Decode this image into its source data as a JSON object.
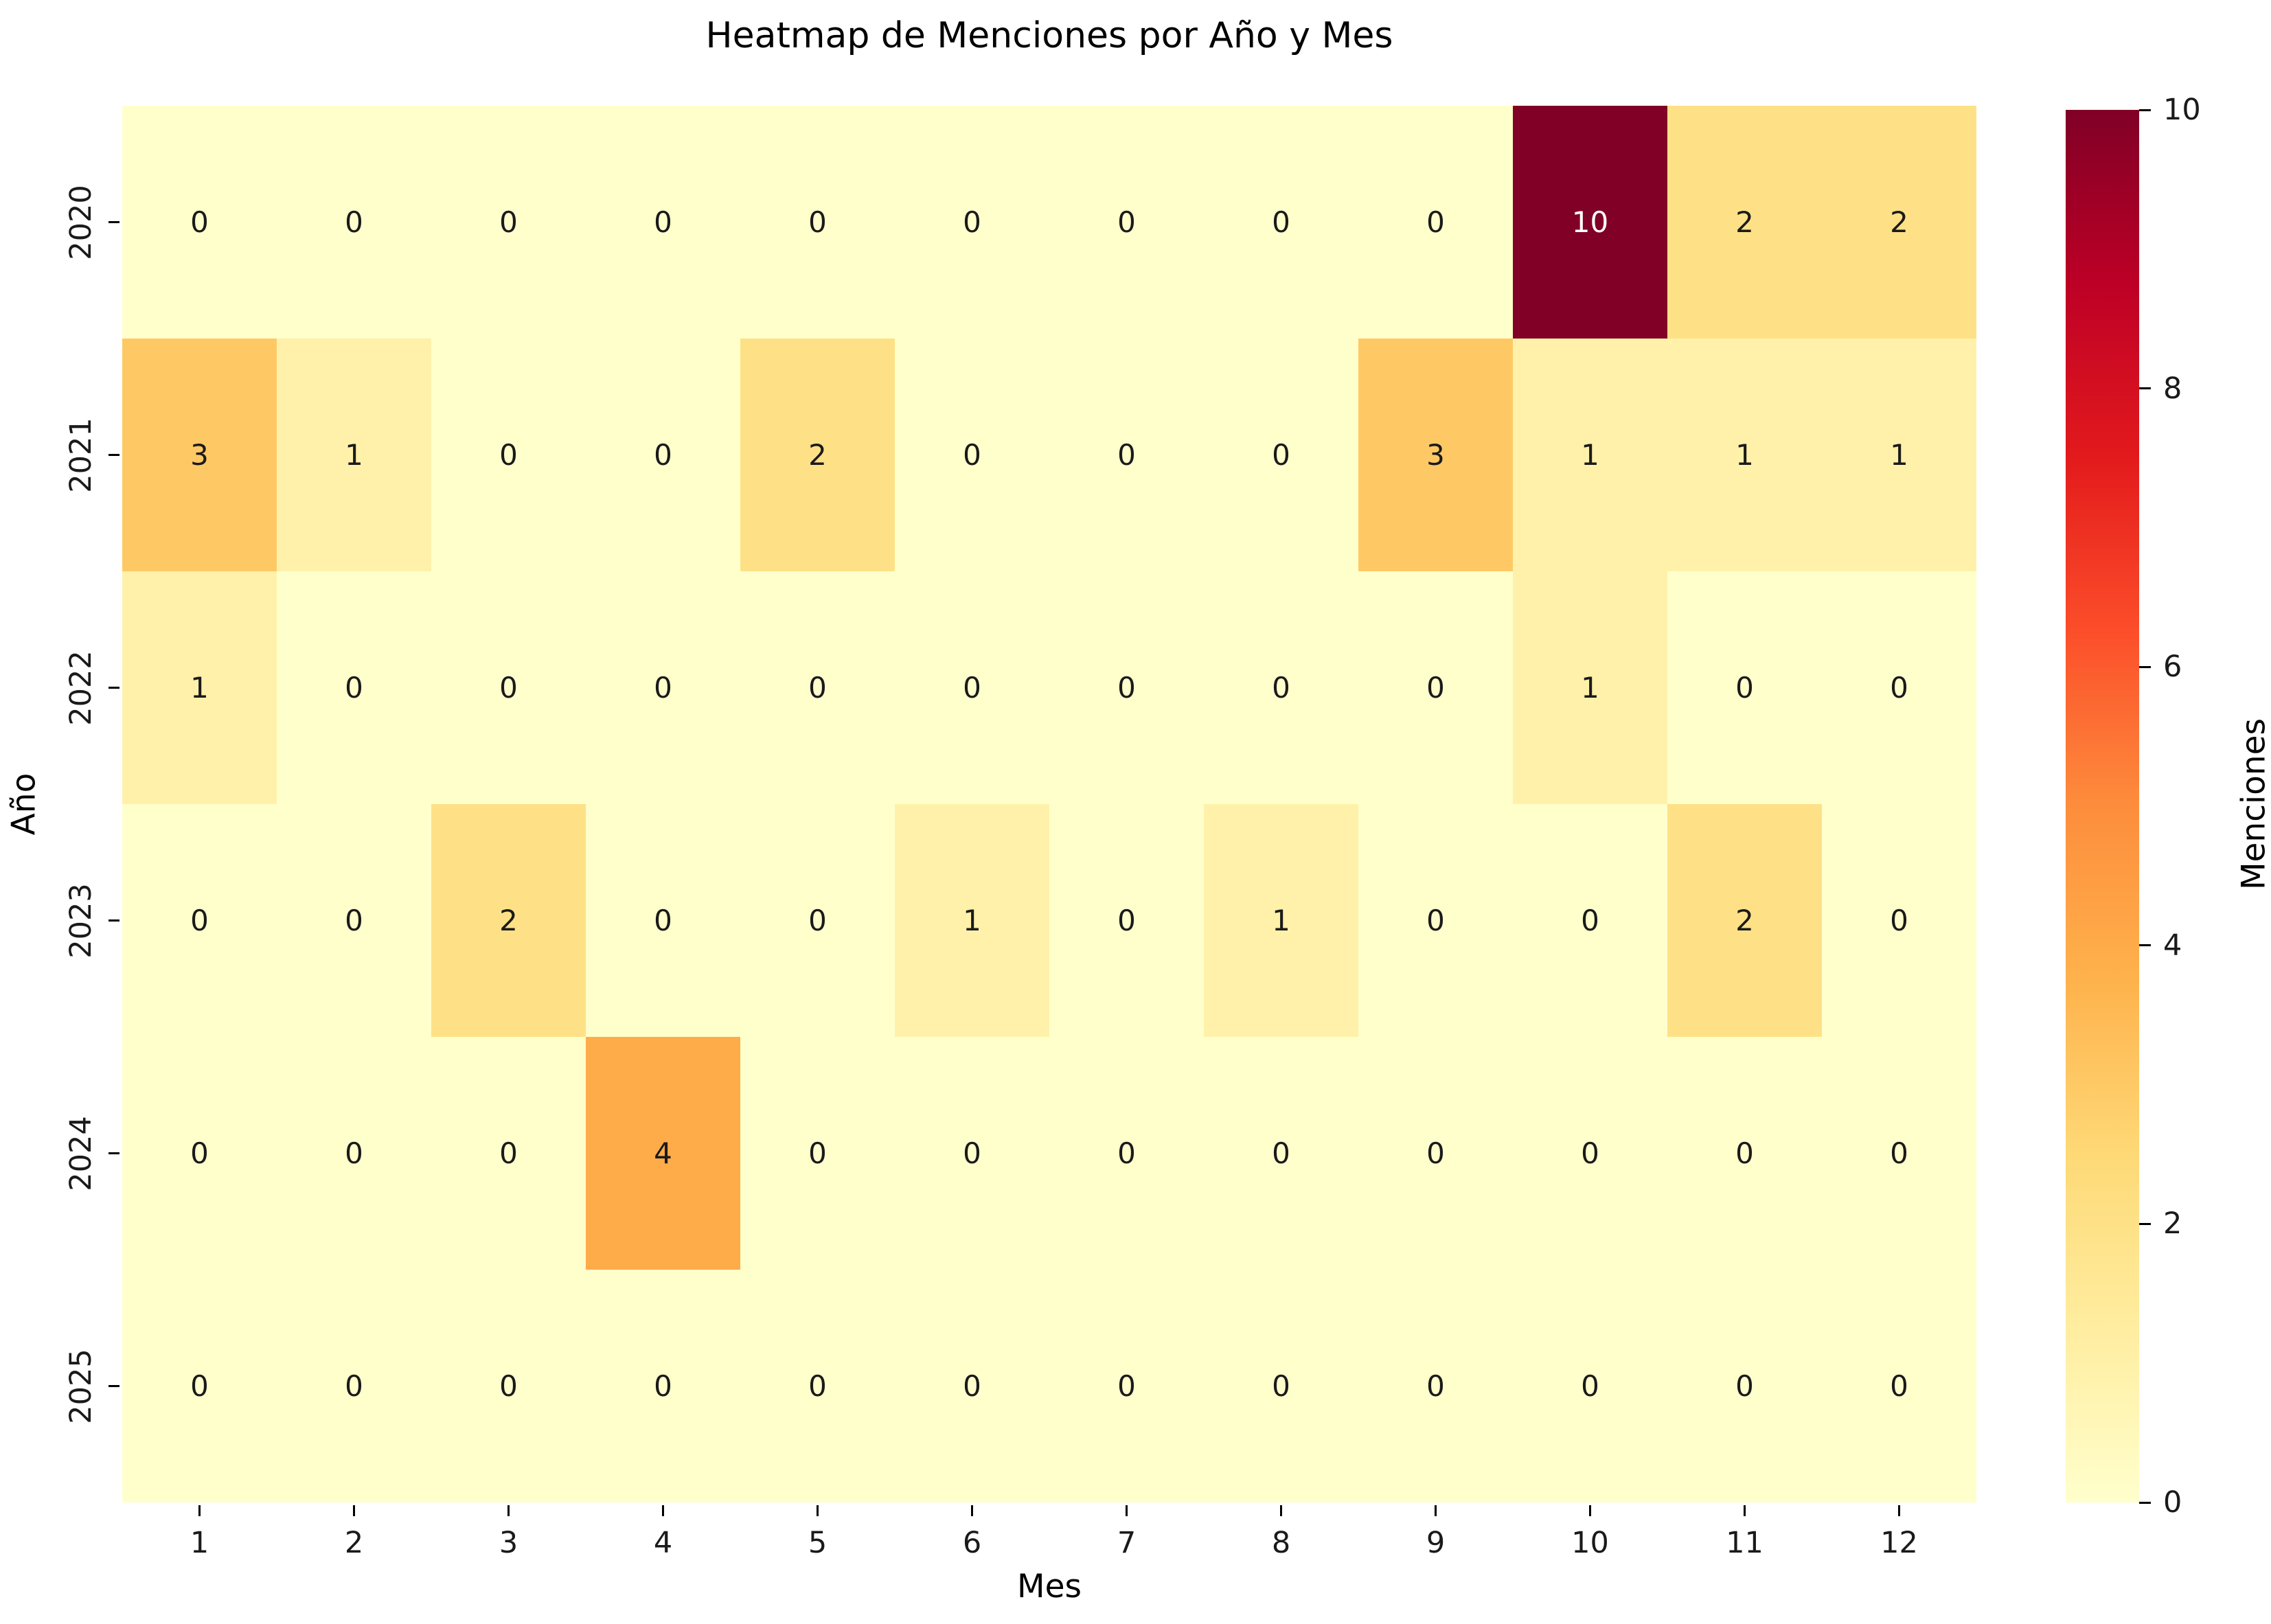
{
  "chart_data": {
    "type": "heatmap",
    "title": "Heatmap de Menciones por Año y Mes",
    "xlabel": "Mes",
    "ylabel": "Año",
    "colorbar_label": "Menciones",
    "x_categories": [
      "1",
      "2",
      "3",
      "4",
      "5",
      "6",
      "7",
      "8",
      "9",
      "10",
      "11",
      "12"
    ],
    "y_categories": [
      "2020",
      "2021",
      "2022",
      "2023",
      "2024",
      "2025"
    ],
    "values": [
      [
        0,
        0,
        0,
        0,
        0,
        0,
        0,
        0,
        0,
        10,
        2,
        2
      ],
      [
        3,
        1,
        0,
        0,
        2,
        0,
        0,
        0,
        3,
        1,
        1,
        1
      ],
      [
        1,
        0,
        0,
        0,
        0,
        0,
        0,
        0,
        0,
        1,
        0,
        0
      ],
      [
        0,
        0,
        2,
        0,
        0,
        1,
        0,
        1,
        0,
        0,
        2,
        0
      ],
      [
        0,
        0,
        0,
        4,
        0,
        0,
        0,
        0,
        0,
        0,
        0,
        0
      ],
      [
        0,
        0,
        0,
        0,
        0,
        0,
        0,
        0,
        0,
        0,
        0,
        0
      ]
    ],
    "vmin": 0,
    "vmax": 10,
    "colorbar_ticks": [
      0,
      2,
      4,
      6,
      8,
      10
    ],
    "colormap": {
      "name": "YlOrRd",
      "anchors": [
        "#ffffcc",
        "#ffeda0",
        "#fed976",
        "#feb24c",
        "#fd8d3c",
        "#fc4e2a",
        "#e31a1c",
        "#bd0026",
        "#800026"
      ]
    },
    "annotation_color_dark": "#1a1a1a",
    "annotation_color_light": "#ffffff",
    "grid": false,
    "legend_position": "colorbar-right",
    "background_color": "#ffffff"
  }
}
